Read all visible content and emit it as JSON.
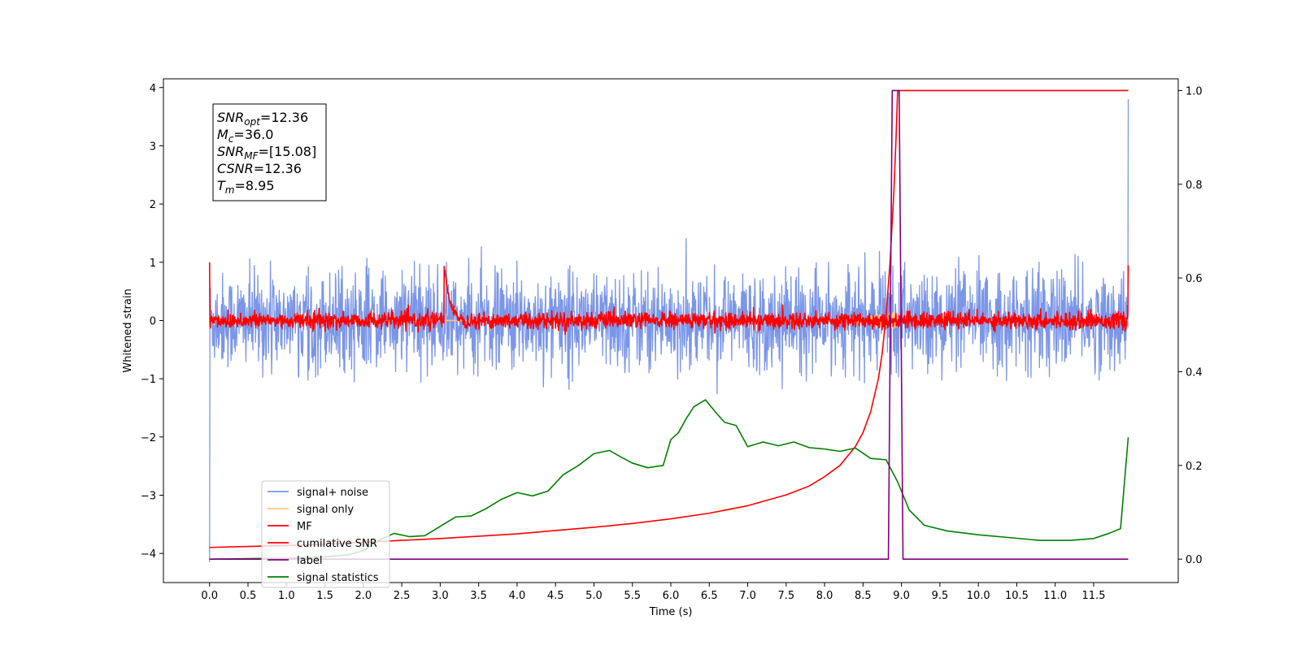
{
  "chart_data": {
    "type": "line",
    "xlabel": "Time (s)",
    "ylabel": "Whitened strain",
    "xlim": [
      -0.6,
      12.6
    ],
    "ylim_left": [
      -4.5,
      4.15
    ],
    "ylim_right": [
      -0.05,
      1.025
    ],
    "x_ticks": [
      0.0,
      0.5,
      1.0,
      1.5,
      2.0,
      2.5,
      3.0,
      3.5,
      4.0,
      4.5,
      5.0,
      5.5,
      6.0,
      6.5,
      7.0,
      7.5,
      8.0,
      8.5,
      9.0,
      9.5,
      10.0,
      10.5,
      11.0,
      11.5
    ],
    "x_tick_labels": [
      "0.0",
      "0.5",
      "1.0",
      "1.5",
      "2.0",
      "2.5",
      "3.0",
      "3.5",
      "4.0",
      "4.5",
      "5.0",
      "5.5",
      "6.0",
      "6.5",
      "7.0",
      "7.5",
      "8.0",
      "8.5",
      "9.0",
      "9.5",
      "10.0",
      "10.5",
      "11.0",
      "11.5"
    ],
    "y_ticks_left": [
      4,
      3,
      2,
      1,
      0,
      -1,
      -2,
      -3,
      -4
    ],
    "y_tick_labels_left": [
      "4",
      "3",
      "2",
      "1",
      "0",
      "−1",
      "−2",
      "−3",
      "−4"
    ],
    "y_ticks_right": [
      1.0,
      0.8,
      0.6,
      0.4,
      0.2,
      0.0
    ],
    "y_tick_labels_right": [
      "1.0",
      "0.8",
      "0.6",
      "0.4",
      "0.2",
      "0.0"
    ],
    "grid": false,
    "legend_position": "lower-left",
    "annotation": {
      "lines": [
        {
          "sym": "SNR",
          "sub": "opt",
          "val": "=12.36"
        },
        {
          "sym": "M",
          "sub": "c",
          "val": "=36.0"
        },
        {
          "sym": "SNR",
          "sub": "MF",
          "val": "=[15.08]"
        },
        {
          "sym": "CSNR",
          "sub": "",
          "val": "=12.36"
        },
        {
          "sym": "T",
          "sub": "m",
          "val": "=8.95"
        }
      ]
    },
    "series": [
      {
        "name": "signal+ noise",
        "color": "#7b96e8",
        "axis": "left",
        "kind": "noise",
        "x_range": [
          0.0,
          11.95
        ],
        "amplitude": 0.4,
        "peak_max": 1.0,
        "peak_min": -1.05,
        "start_value": -4.15,
        "end_value": 3.8
      },
      {
        "name": "signal only",
        "color": "#f7c977",
        "axis": "left",
        "kind": "chirp",
        "x_range": [
          0.0,
          11.95
        ],
        "merger_time": 8.95,
        "peak": 0.15
      },
      {
        "name": "MF",
        "color": "#ff0000",
        "axis": "left",
        "kind": "noise",
        "x_range": [
          0.0,
          11.95
        ],
        "amplitude": 0.07,
        "start_value": 1.0,
        "spike_x": 3.05,
        "spike_value": 0.97,
        "end_value": 0.95
      },
      {
        "name": "cumilative SNR",
        "color": "#ff0000",
        "axis": "right",
        "points": [
          [
            0.0,
            0.025
          ],
          [
            0.5,
            0.027
          ],
          [
            1.0,
            0.029
          ],
          [
            1.5,
            0.032
          ],
          [
            2.0,
            0.036
          ],
          [
            2.5,
            0.04
          ],
          [
            3.0,
            0.044
          ],
          [
            3.5,
            0.049
          ],
          [
            4.0,
            0.054
          ],
          [
            4.5,
            0.061
          ],
          [
            5.0,
            0.068
          ],
          [
            5.5,
            0.076
          ],
          [
            6.0,
            0.086
          ],
          [
            6.5,
            0.098
          ],
          [
            7.0,
            0.114
          ],
          [
            7.5,
            0.137
          ],
          [
            7.8,
            0.156
          ],
          [
            8.0,
            0.176
          ],
          [
            8.2,
            0.2
          ],
          [
            8.4,
            0.24
          ],
          [
            8.5,
            0.27
          ],
          [
            8.6,
            0.315
          ],
          [
            8.7,
            0.385
          ],
          [
            8.75,
            0.44
          ],
          [
            8.8,
            0.52
          ],
          [
            8.85,
            0.63
          ],
          [
            8.9,
            0.78
          ],
          [
            8.93,
            0.9
          ],
          [
            8.95,
            1.0
          ],
          [
            9.0,
            1.0
          ],
          [
            10.0,
            1.0
          ],
          [
            11.0,
            1.0
          ],
          [
            11.95,
            1.0
          ]
        ]
      },
      {
        "name": "label",
        "color": "#800080",
        "axis": "right",
        "points": [
          [
            0.0,
            0.0
          ],
          [
            8.83,
            0.0
          ],
          [
            8.88,
            1.0
          ],
          [
            8.97,
            1.0
          ],
          [
            9.02,
            0.0
          ],
          [
            11.95,
            0.0
          ]
        ]
      },
      {
        "name": "signal statistics",
        "color": "#008000",
        "axis": "right",
        "points": [
          [
            0.0,
            0.0
          ],
          [
            0.5,
            0.001
          ],
          [
            1.0,
            0.002
          ],
          [
            1.5,
            0.005
          ],
          [
            1.8,
            0.009
          ],
          [
            2.0,
            0.018
          ],
          [
            2.2,
            0.04
          ],
          [
            2.4,
            0.055
          ],
          [
            2.6,
            0.048
          ],
          [
            2.8,
            0.05
          ],
          [
            3.0,
            0.07
          ],
          [
            3.2,
            0.09
          ],
          [
            3.4,
            0.092
          ],
          [
            3.6,
            0.108
          ],
          [
            3.8,
            0.128
          ],
          [
            4.0,
            0.142
          ],
          [
            4.2,
            0.135
          ],
          [
            4.4,
            0.145
          ],
          [
            4.6,
            0.18
          ],
          [
            4.8,
            0.2
          ],
          [
            5.0,
            0.225
          ],
          [
            5.2,
            0.232
          ],
          [
            5.35,
            0.218
          ],
          [
            5.5,
            0.205
          ],
          [
            5.7,
            0.195
          ],
          [
            5.9,
            0.2
          ],
          [
            6.0,
            0.255
          ],
          [
            6.1,
            0.27
          ],
          [
            6.2,
            0.3
          ],
          [
            6.3,
            0.325
          ],
          [
            6.45,
            0.34
          ],
          [
            6.6,
            0.31
          ],
          [
            6.7,
            0.292
          ],
          [
            6.85,
            0.285
          ],
          [
            7.0,
            0.24
          ],
          [
            7.2,
            0.25
          ],
          [
            7.4,
            0.242
          ],
          [
            7.6,
            0.25
          ],
          [
            7.8,
            0.238
          ],
          [
            8.0,
            0.235
          ],
          [
            8.2,
            0.23
          ],
          [
            8.4,
            0.237
          ],
          [
            8.6,
            0.215
          ],
          [
            8.8,
            0.212
          ],
          [
            8.95,
            0.165
          ],
          [
            9.1,
            0.105
          ],
          [
            9.3,
            0.072
          ],
          [
            9.6,
            0.06
          ],
          [
            10.0,
            0.052
          ],
          [
            10.4,
            0.046
          ],
          [
            10.8,
            0.04
          ],
          [
            11.2,
            0.04
          ],
          [
            11.5,
            0.044
          ],
          [
            11.7,
            0.055
          ],
          [
            11.85,
            0.065
          ],
          [
            11.95,
            0.26
          ]
        ]
      }
    ]
  }
}
